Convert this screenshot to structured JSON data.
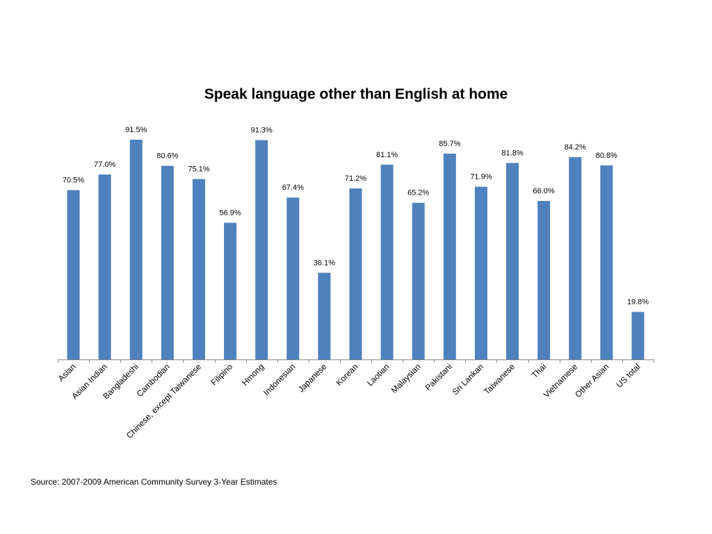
{
  "chart_data": {
    "type": "bar",
    "title": "Speak language other than English at home",
    "categories": [
      "Asian",
      "Asian Indian",
      "Bangladeshi",
      "Cambodian",
      "Chinese, except Taiwanese",
      "Filipino",
      "Hmong",
      "Indonesian",
      "Japanese",
      "Korean",
      "Laotian",
      "Malaysian",
      "Pakistani",
      "Sri Lankan",
      "Taiwanese",
      "Thai",
      "Vietnamese",
      "Other Asian",
      "US total"
    ],
    "values": [
      70.5,
      77.0,
      91.5,
      80.6,
      75.1,
      56.9,
      91.3,
      67.4,
      36.1,
      71.2,
      81.1,
      65.2,
      85.7,
      71.9,
      81.8,
      66.0,
      84.2,
      80.8,
      19.8
    ],
    "data_labels": [
      "70.5%",
      "77.0%",
      "91.5%",
      "80.6%",
      "75.1%",
      "56.9%",
      "91.3%",
      "67.4%",
      "36.1%",
      "71.2%",
      "81.1%",
      "65.2%",
      "85.7%",
      "71.9%",
      "81.8%",
      "66.0%",
      "84.2%",
      "80.8%",
      "19.8%"
    ],
    "xlabel": "",
    "ylabel": "",
    "ylim": [
      0,
      100
    ],
    "grid": false,
    "legend": "none",
    "bar_color": "#4F81BD"
  },
  "source": "Source: 2007-2009 American Community Survey 3-Year Estimates"
}
